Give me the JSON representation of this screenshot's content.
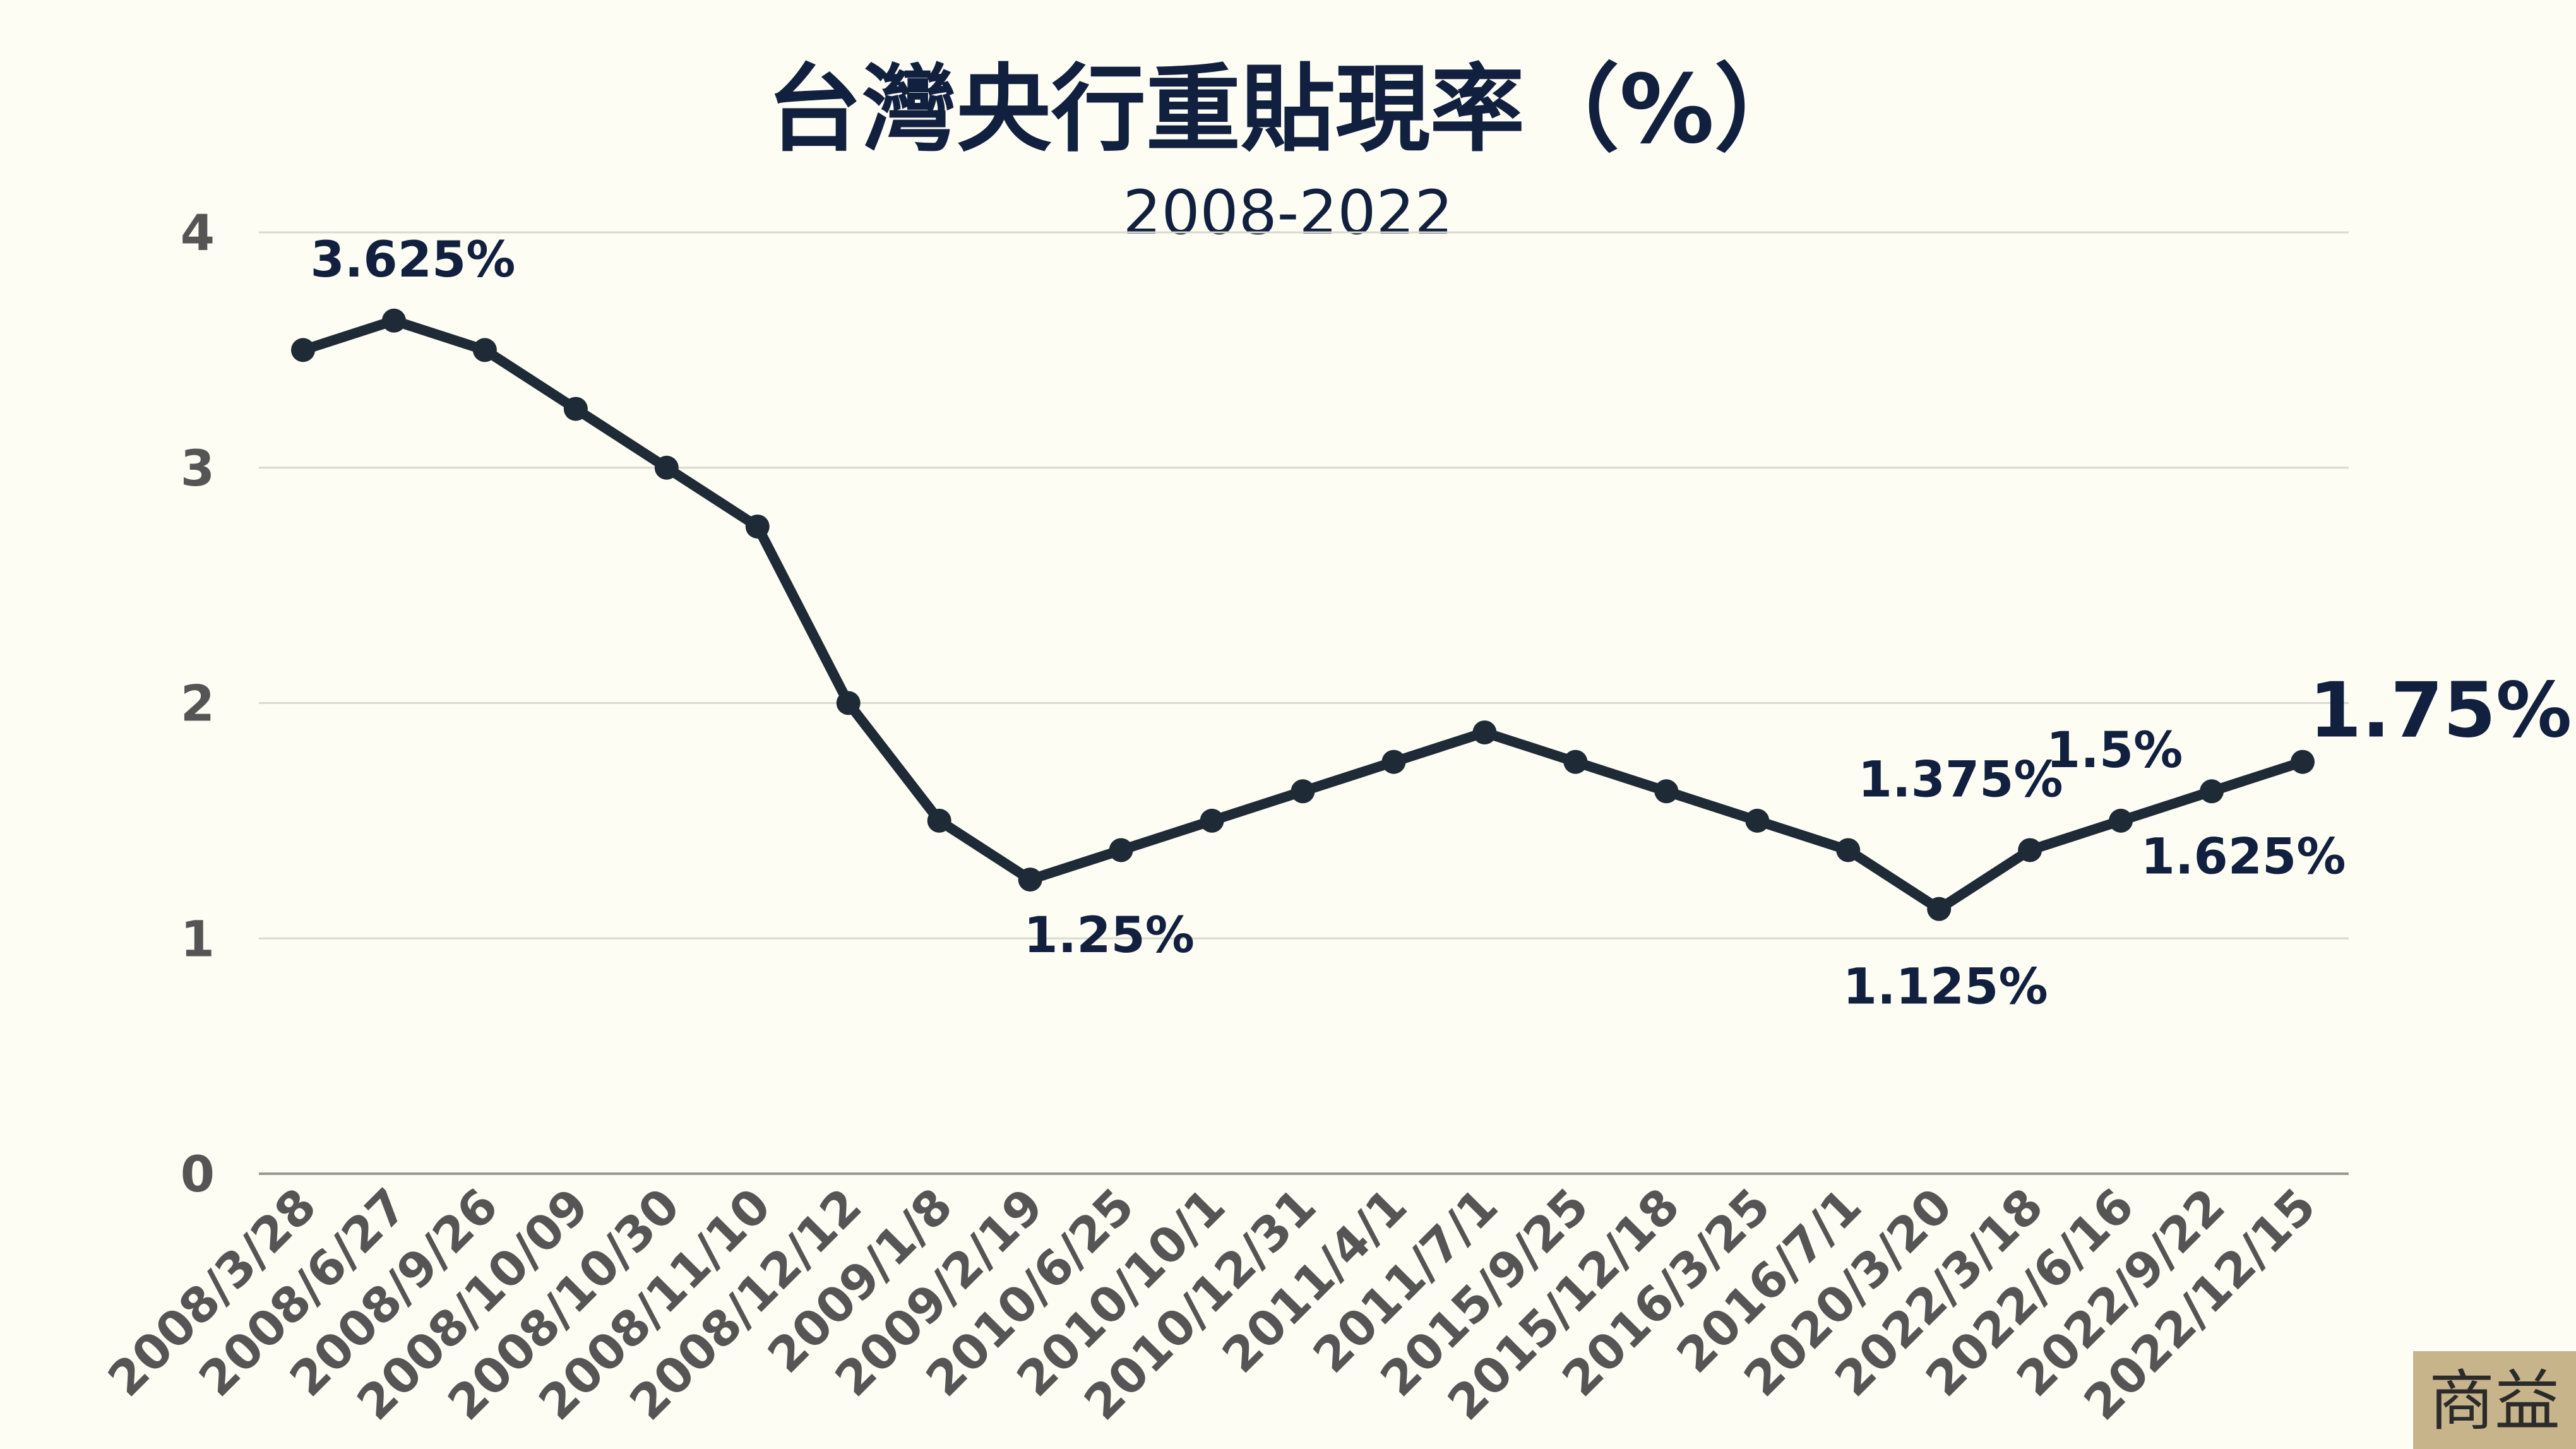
{
  "chart_data": {
    "type": "line",
    "title": "台灣央行重貼現率（%）",
    "subtitle": "2008-2022",
    "xlabel": "",
    "ylabel": "",
    "ylim": [
      0,
      4
    ],
    "yticks": [
      "0",
      "1",
      "2",
      "3",
      "4"
    ],
    "grid": true,
    "categories": [
      "2008/3/28",
      "2008/6/27",
      "2008/9/26",
      "2008/10/09",
      "2008/10/30",
      "2008/11/10",
      "2008/12/12",
      "2009/1/8",
      "2009/2/19",
      "2010/6/25",
      "2010/10/1",
      "2010/12/31",
      "2011/4/1",
      "2011/7/1",
      "2015/9/25",
      "2015/12/18",
      "2016/3/25",
      "2016/7/1",
      "2020/3/20",
      "2022/3/18",
      "2022/6/16",
      "2022/9/22",
      "2022/12/15"
    ],
    "values": [
      3.5,
      3.625,
      3.5,
      3.25,
      3.0,
      2.75,
      2.0,
      1.5,
      1.25,
      1.375,
      1.5,
      1.625,
      1.75,
      1.875,
      1.75,
      1.625,
      1.5,
      1.375,
      1.125,
      1.375,
      1.5,
      1.625,
      1.75
    ],
    "annotations": [
      {
        "index": 1,
        "text": "3.625%"
      },
      {
        "index": 8,
        "text": "1.25%"
      },
      {
        "index": 18,
        "text": "1.125%"
      },
      {
        "index": 19,
        "text": "1.375%"
      },
      {
        "index": 20,
        "text": "1.5%"
      },
      {
        "index": 21,
        "text": "1.625%"
      },
      {
        "index": 22,
        "text": "1.75%"
      }
    ],
    "colors": {
      "background": "#fdfdf3",
      "line": "#1f2a37",
      "title": "#12203f",
      "tick": "#555555",
      "grid": "#d9d9d0",
      "logo_bg": "#c8b48a",
      "logo_fg": "#2b2b2b"
    }
  },
  "logo": {
    "text": "商益"
  }
}
